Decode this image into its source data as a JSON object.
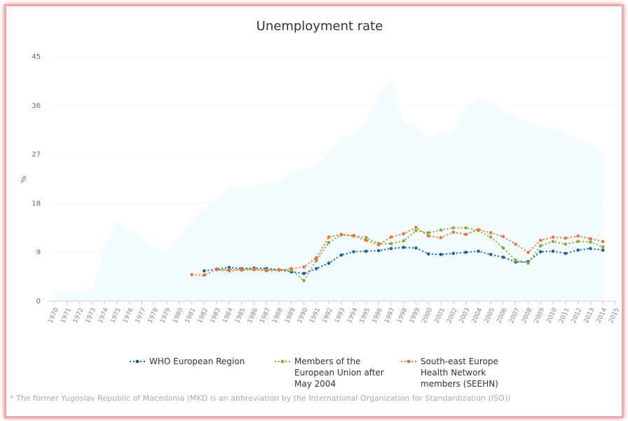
{
  "chart_data": {
    "type": "line",
    "title": "Unemployment rate",
    "y_label": "%",
    "footnote": "* The former Yugoslav Republic of Macedonia (MKD is an abbreviation by the International Organization for Standardization (ISO))",
    "categories": [
      "1970",
      "1971",
      "1972",
      "1973",
      "1974",
      "1975",
      "1976",
      "1977",
      "1978",
      "1979",
      "1980",
      "1981",
      "1982",
      "1983",
      "1984",
      "1985",
      "1986",
      "1987",
      "1988",
      "1989",
      "1990",
      "1991",
      "1992",
      "1993",
      "1994",
      "1995",
      "1996",
      "1997",
      "1998",
      "1999",
      "2000",
      "2001",
      "2002",
      "2003",
      "2004",
      "2005",
      "2006",
      "2007",
      "2008",
      "2009",
      "2010",
      "2011",
      "2012",
      "2013",
      "2014",
      "2015"
    ],
    "ylim": [
      0,
      45
    ],
    "yticks": [
      0,
      9,
      18,
      27,
      36,
      45
    ],
    "grid": true,
    "area": {
      "color": "#f2fbfd",
      "values": [
        2,
        2,
        2,
        2,
        10,
        15,
        13,
        12,
        10,
        9,
        12,
        15,
        17,
        19,
        21,
        21,
        21,
        22,
        22,
        24,
        24,
        25,
        27,
        30,
        31,
        33,
        38,
        41,
        33,
        32,
        30,
        31,
        31,
        36,
        37,
        37,
        35,
        34,
        33,
        32,
        32,
        31,
        30,
        29,
        27,
        null
      ]
    },
    "series": [
      {
        "name": "WHO European Region",
        "color": "#1f5fa0",
        "values": [
          null,
          null,
          null,
          null,
          null,
          null,
          null,
          null,
          null,
          null,
          null,
          null,
          5.6,
          5.9,
          6.2,
          6.0,
          6.1,
          6.0,
          5.8,
          5.4,
          5.1,
          6.0,
          7.0,
          8.5,
          9.1,
          9.2,
          9.3,
          9.7,
          9.9,
          9.8,
          8.7,
          8.6,
          8.8,
          9.0,
          9.2,
          8.6,
          8.1,
          7.2,
          7.3,
          9.1,
          9.2,
          8.8,
          9.4,
          9.7,
          9.4,
          null
        ]
      },
      {
        "name": "Members of the European Union after May 2004",
        "color": "#8aab3c",
        "values": [
          null,
          null,
          null,
          null,
          null,
          null,
          null,
          null,
          null,
          null,
          null,
          null,
          null,
          5.8,
          5.8,
          5.9,
          5.9,
          5.8,
          5.8,
          5.7,
          3.8,
          7.5,
          10.8,
          12.2,
          12.1,
          11.7,
          10.6,
          10.6,
          11.1,
          13.0,
          12.6,
          13.1,
          13.5,
          13.5,
          13.0,
          11.8,
          9.8,
          7.5,
          7.0,
          10.2,
          11.0,
          10.5,
          11.0,
          10.9,
          10.0,
          null
        ]
      },
      {
        "name": "South-east Europe Health Network members (SEEHN)",
        "color": "#e8743b",
        "values": [
          null,
          null,
          null,
          null,
          null,
          null,
          null,
          null,
          null,
          null,
          null,
          4.9,
          4.8,
          5.8,
          5.6,
          5.7,
          5.8,
          5.6,
          5.7,
          6.0,
          6.3,
          8.0,
          11.8,
          12.3,
          12.0,
          11.2,
          10.4,
          11.8,
          12.4,
          13.6,
          12.0,
          11.7,
          12.7,
          12.3,
          13.2,
          12.6,
          11.9,
          10.5,
          9.0,
          11.2,
          11.8,
          11.6,
          12.0,
          11.5,
          11.0,
          null
        ]
      }
    ]
  }
}
